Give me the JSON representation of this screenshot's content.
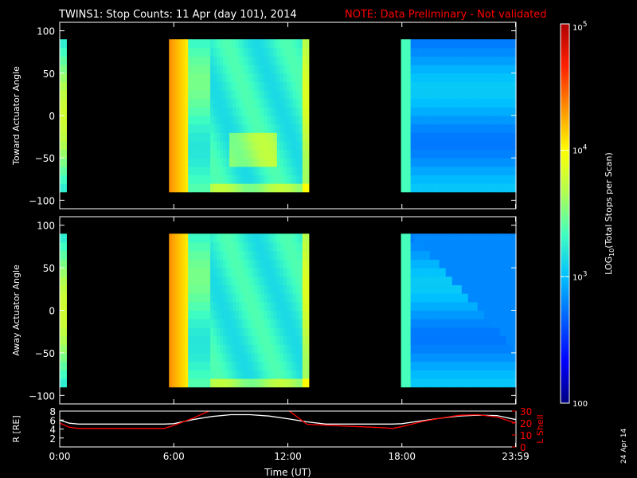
{
  "header": {
    "title": "TWINS1: Stop Counts: 11 Apr (day 101), 2014",
    "note": "NOTE: Data Preliminary - Not validated",
    "note_color": "#ff0000"
  },
  "footer": {
    "date_stamp": "24 Apr 14"
  },
  "chart_data": [
    {
      "type": "heatmap",
      "name": "toward",
      "ylabel": "Toward Actuator Angle",
      "ylim": [
        -110,
        110
      ],
      "yticks": [
        "100",
        "50",
        "0",
        "−50",
        "−100"
      ],
      "ytick_values": [
        100,
        50,
        0,
        -50,
        -100
      ],
      "data_blocks": [
        {
          "t_start": 0.0,
          "t_end": 0.35,
          "angle_range": [
            -90,
            90
          ]
        },
        {
          "t_start": 5.75,
          "t_end": 13.1,
          "angle_range": [
            -90,
            90
          ]
        },
        {
          "t_start": 17.95,
          "t_end": 24.0,
          "angle_range": [
            -90,
            90
          ]
        }
      ]
    },
    {
      "type": "heatmap",
      "name": "away",
      "ylabel": "Away Actuator Angle",
      "ylim": [
        -110,
        110
      ],
      "yticks": [
        "100",
        "50",
        "0",
        "−50",
        "−100"
      ],
      "ytick_values": [
        100,
        50,
        0,
        -50,
        -100
      ],
      "data_blocks": [
        {
          "t_start": 0.0,
          "t_end": 0.35,
          "angle_range": [
            -90,
            90
          ]
        },
        {
          "t_start": 5.75,
          "t_end": 13.1,
          "angle_range": [
            -90,
            90
          ]
        },
        {
          "t_start": 17.95,
          "t_end": 24.0,
          "angle_range": [
            -90,
            90
          ]
        }
      ]
    },
    {
      "type": "line",
      "name": "ephemeris",
      "ylabel_left": "R [RE]",
      "ylabel_right": "L Shell",
      "ylim_left": [
        0,
        8
      ],
      "ylim_right": [
        0,
        30
      ],
      "yticks_left": [
        "8",
        "6",
        "4",
        "2"
      ],
      "yticks_left_values": [
        8,
        6,
        4,
        2
      ],
      "yticks_right": [
        "30",
        "20",
        "10",
        "0"
      ],
      "yticks_right_values": [
        30,
        20,
        10,
        0
      ],
      "x": [
        0,
        0.5,
        1.0,
        2,
        3,
        4,
        5,
        5.5,
        6,
        7,
        8,
        9,
        10,
        11,
        12,
        13,
        14,
        15,
        16,
        17,
        17.5,
        18,
        19,
        20,
        21,
        22,
        23,
        24
      ],
      "series": [
        {
          "name": "R",
          "axis": "left",
          "color": "#ffffff",
          "values": [
            6.0,
            5.3,
            5.1,
            5.1,
            5.1,
            5.1,
            5.1,
            5.1,
            5.2,
            6.1,
            6.8,
            7.2,
            7.2,
            6.9,
            6.3,
            5.6,
            5.1,
            5.1,
            5.1,
            5.1,
            5.1,
            5.2,
            5.8,
            6.4,
            6.9,
            7.1,
            7.0,
            6.1
          ]
        },
        {
          "name": "L Shell",
          "axis": "right",
          "color": "#ff0000",
          "values": [
            20,
            16.5,
            15.5,
            15.5,
            15.5,
            15.5,
            15.5,
            15.5,
            18,
            24,
            31,
            null,
            null,
            null,
            31,
            19,
            18.2,
            17.5,
            16.8,
            16.1,
            15.5,
            17,
            21,
            24,
            26.5,
            27,
            25,
            20
          ]
        }
      ]
    }
  ],
  "xaxis": {
    "label": "Time (UT)",
    "ticks": [
      "0:00",
      "6:00",
      "12:00",
      "18:00",
      "23:59"
    ],
    "tick_values": [
      0,
      6,
      12,
      18,
      23.98
    ],
    "range": [
      0,
      24
    ]
  },
  "colorbar": {
    "label": "LOG10(Total Stops per Scan)",
    "label_pre": "LOG",
    "label_sub": "10",
    "label_post": "(Total Stops per Scan)",
    "ticks": [
      {
        "base": "10",
        "exp": "5",
        "value": 100000
      },
      {
        "base": "10",
        "exp": "4",
        "value": 10000
      },
      {
        "base": "10",
        "exp": "3",
        "value": 1000
      },
      {
        "base": "100",
        "exp": "",
        "value": 100
      }
    ],
    "range": [
      100,
      100000
    ],
    "scale": "log",
    "colors": [
      "#00007f",
      "#0000ff",
      "#0060ff",
      "#00c0ff",
      "#40ffc0",
      "#b0ff50",
      "#ffff00",
      "#ff9000",
      "#ff2000",
      "#b00000"
    ]
  }
}
